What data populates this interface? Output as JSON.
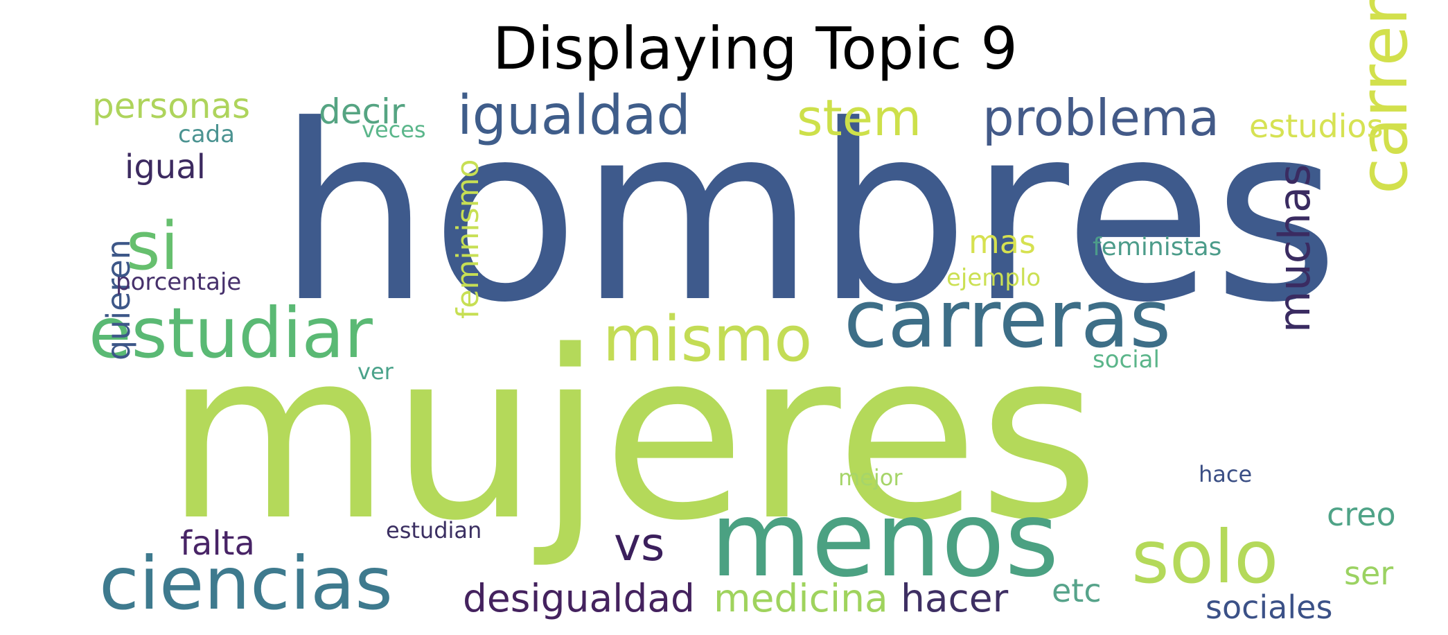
{
  "title": "Displaying Topic 9",
  "words": [
    {
      "text": "hombres",
      "color": "#3e5a8c"
    },
    {
      "text": "mujeres",
      "color": "#b4d95a"
    },
    {
      "text": "menos",
      "color": "#4ba182"
    },
    {
      "text": "carreras",
      "color": "#3d6e87"
    },
    {
      "text": "ciencias",
      "color": "#3e7a8e"
    },
    {
      "text": "estudiar",
      "color": "#5ab974"
    },
    {
      "text": "carrera",
      "color": "#d2e04c"
    },
    {
      "text": "solo",
      "color": "#b4d95a"
    },
    {
      "text": "mismo",
      "color": "#c3dc55"
    },
    {
      "text": "igualdad",
      "color": "#3f5d8a"
    },
    {
      "text": "problema",
      "color": "#435a88"
    },
    {
      "text": "stem",
      "color": "#cde04a"
    },
    {
      "text": "si",
      "color": "#66bf6e"
    },
    {
      "text": "muchas",
      "color": "#3a2b61"
    },
    {
      "text": "vs",
      "color": "#3b1f5c"
    },
    {
      "text": "desigualdad",
      "color": "#44225e"
    },
    {
      "text": "medicina",
      "color": "#9fd35d"
    },
    {
      "text": "hacer",
      "color": "#3e2f63"
    },
    {
      "text": "falta",
      "color": "#482466"
    },
    {
      "text": "feminismo",
      "color": "#c7df54"
    },
    {
      "text": "quieren",
      "color": "#3d5788"
    },
    {
      "text": "personas",
      "color": "#aed45c"
    },
    {
      "text": "decir",
      "color": "#55a482"
    },
    {
      "text": "igual",
      "color": "#3c2a60"
    },
    {
      "text": "estudios",
      "color": "#d6e253"
    },
    {
      "text": "creo",
      "color": "#4fa387"
    },
    {
      "text": "etc",
      "color": "#56a38a"
    },
    {
      "text": "sociales",
      "color": "#3b5187"
    },
    {
      "text": "ser",
      "color": "#9bd262"
    },
    {
      "text": "mas",
      "color": "#d6e150"
    },
    {
      "text": "feministas",
      "color": "#4c9c8a"
    },
    {
      "text": "ejemplo",
      "color": "#cbe053"
    },
    {
      "text": "porcentaje",
      "color": "#46306b"
    },
    {
      "text": "social",
      "color": "#5bb58a"
    },
    {
      "text": "ver",
      "color": "#4aa28a"
    },
    {
      "text": "mejor",
      "color": "#a6d569"
    },
    {
      "text": "hace",
      "color": "#3a4e84"
    },
    {
      "text": "estudian",
      "color": "#3b2f62"
    },
    {
      "text": "cada",
      "color": "#4b9391"
    },
    {
      "text": "veces",
      "color": "#5bb68b"
    }
  ]
}
